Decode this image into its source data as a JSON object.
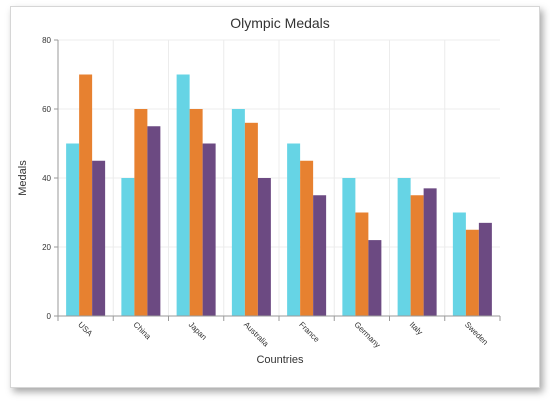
{
  "chart_data": {
    "type": "bar",
    "title": "Olympic Medals",
    "xlabel": "Countries",
    "ylabel": "Medals",
    "ylim": [
      0,
      80
    ],
    "yticks": [
      0,
      20,
      40,
      60,
      80
    ],
    "grid": true,
    "legend": "none",
    "categories": [
      "USA",
      "China",
      "Japan",
      "Australia",
      "France",
      "Germany",
      "Italy",
      "Sweden"
    ],
    "series": [
      {
        "color": "#66d4e5",
        "values": [
          50,
          40,
          70,
          60,
          50,
          40,
          40,
          30
        ]
      },
      {
        "color": "#e78130",
        "values": [
          70,
          60,
          60,
          56,
          45,
          30,
          35,
          25
        ]
      },
      {
        "color": "#6c4a82",
        "values": [
          45,
          55,
          50,
          40,
          35,
          22,
          37,
          27
        ]
      }
    ]
  }
}
